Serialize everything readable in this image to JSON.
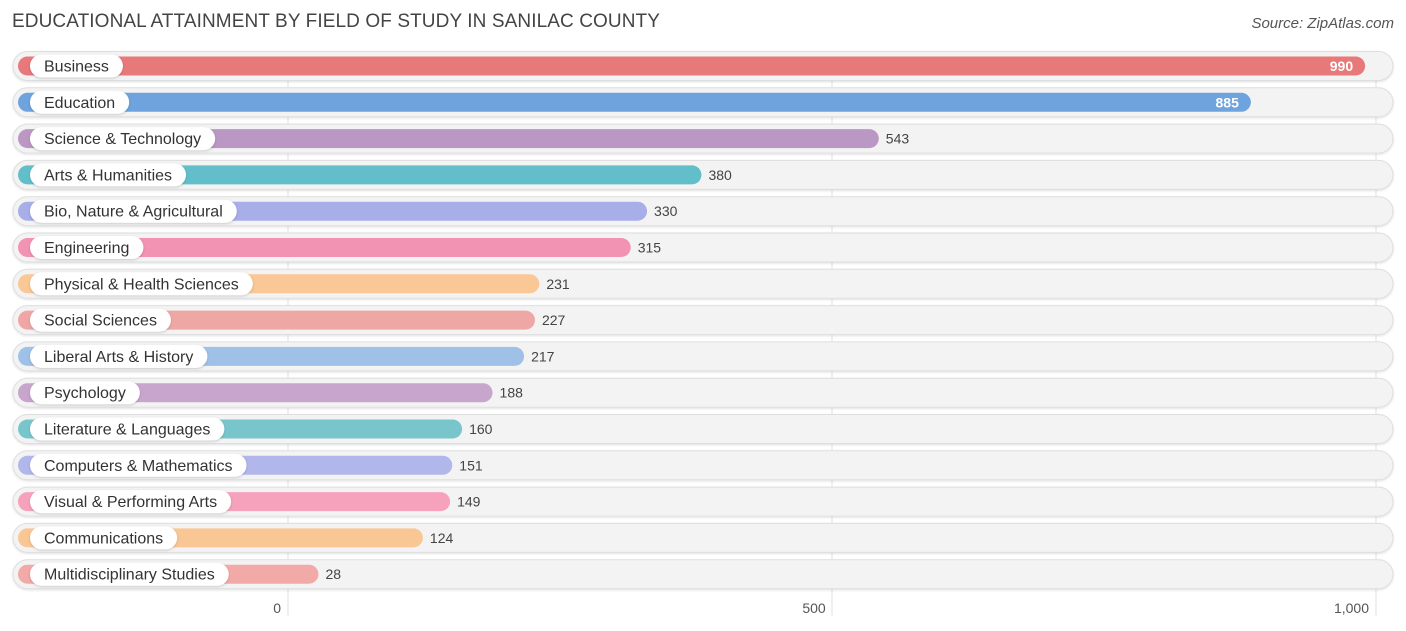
{
  "chart_data": {
    "type": "bar",
    "orientation": "horizontal",
    "title": "EDUCATIONAL ATTAINMENT BY FIELD OF STUDY IN SANILAC COUNTY",
    "source": "Source: ZipAtlas.com",
    "xlabel": "",
    "ylabel": "",
    "xlim": [
      0,
      1000
    ],
    "grid": true,
    "ticks": [
      {
        "value": 0,
        "label": "0"
      },
      {
        "value": 500,
        "label": "500"
      },
      {
        "value": 1000,
        "label": "1,000"
      }
    ],
    "categories": [
      "Business",
      "Education",
      "Science & Technology",
      "Arts & Humanities",
      "Bio, Nature & Agricultural",
      "Engineering",
      "Physical & Health Sciences",
      "Social Sciences",
      "Liberal Arts & History",
      "Psychology",
      "Literature & Languages",
      "Computers & Mathematics",
      "Visual & Performing Arts",
      "Communications",
      "Multidisciplinary Studies"
    ],
    "values": [
      990,
      885,
      543,
      380,
      330,
      315,
      231,
      227,
      217,
      188,
      160,
      151,
      149,
      124,
      28
    ],
    "value_labels": [
      "990",
      "885",
      "543",
      "380",
      "330",
      "315",
      "231",
      "227",
      "217",
      "188",
      "160",
      "151",
      "149",
      "124",
      "28"
    ],
    "colors": [
      "#e8797a",
      "#6ea3de",
      "#bb97c4",
      "#62bfc9",
      "#a7aee8",
      "#f393b4",
      "#f9c896",
      "#efa7a5",
      "#9fc1e8",
      "#c8a5cd",
      "#78c6cc",
      "#b1b7ea",
      "#f6a2bd",
      "#f9c794",
      "#f1aaa8"
    ]
  }
}
